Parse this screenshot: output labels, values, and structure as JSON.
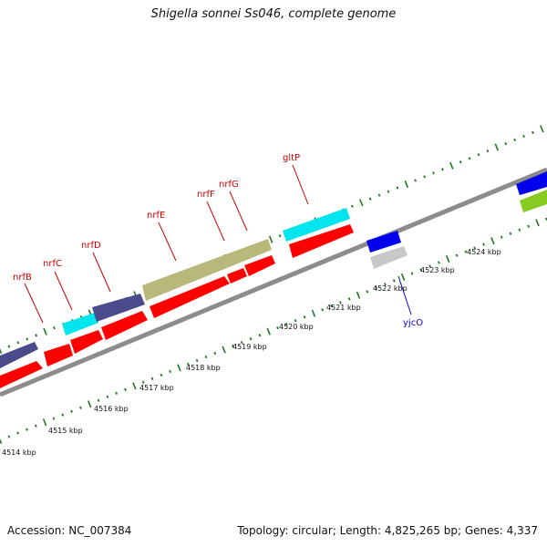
{
  "title": "Shigella sonnei Ss046, complete genome",
  "footer": {
    "accession": "Accession: NC_007384",
    "summary": "Topology: circular; Length: 4,825,265 bp; Genes: 4,337"
  },
  "colors": {
    "background": "#ffffff",
    "backbone": "#808080",
    "tick": "#1f7a1f",
    "gene_label_red": "#cc0000",
    "gene_label_blue": "#0000cc",
    "cds_red": "#ff0000",
    "cds_cyan": "#00ffff",
    "cds_navy": "#4b4b8c",
    "cds_olive": "#b8b87a",
    "cds_blue": "#0000ee",
    "cds_grey": "#c8c8c8",
    "cds_green": "#88cc22"
  },
  "kbp_labels": [
    "4514 kbp",
    "4515 kbp",
    "4516 kbp",
    "4517 kbp",
    "4518 kbp",
    "4519 kbp",
    "4520 kbp",
    "4521 kbp",
    "4522 kbp",
    "4523 kbp",
    "4524 kbp"
  ],
  "gene_labels": [
    {
      "text": "nrfB",
      "color": "red"
    },
    {
      "text": "nrfC",
      "color": "red"
    },
    {
      "text": "nrfD",
      "color": "red"
    },
    {
      "text": "nrfE",
      "color": "red"
    },
    {
      "text": "nrfF",
      "color": "red"
    },
    {
      "text": "nrfG",
      "color": "red"
    },
    {
      "text": "gltP",
      "color": "red"
    },
    {
      "text": "yjcO",
      "color": "blue"
    }
  ]
}
